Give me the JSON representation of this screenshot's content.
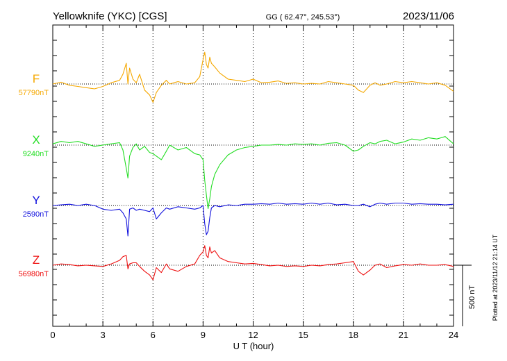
{
  "header": {
    "station": "Yellowknife (YKC)  [CGS]",
    "coords": "GG ( 62.47°, 245.53°)",
    "date": "2023/11/06"
  },
  "footer": {
    "plotted": "Plotted at 2023/11/12 21:14 UT"
  },
  "colors": {
    "F": "#f5a800",
    "X": "#22dd22",
    "Y": "#1010dd",
    "Z": "#ee1111",
    "frame": "#000000"
  },
  "chart_data": {
    "type": "line",
    "xlabel": "U T (hour)",
    "xlim": [
      0,
      24
    ],
    "x_ticks": [
      "0",
      "3",
      "6",
      "9",
      "12",
      "15",
      "18",
      "21",
      "24"
    ],
    "scale_bar": {
      "label": "500 nT",
      "value_nT": 500
    },
    "x": [
      0,
      0.5,
      1,
      1.5,
      2,
      2.5,
      3,
      3.5,
      4,
      4.2,
      4.4,
      4.5,
      4.6,
      4.8,
      5,
      5.2,
      5.5,
      5.8,
      6,
      6.2,
      6.5,
      6.8,
      7,
      7.5,
      8,
      8.5,
      8.8,
      9,
      9.1,
      9.2,
      9.3,
      9.4,
      9.5,
      9.7,
      10,
      10.5,
      11,
      11.5,
      12,
      12.5,
      13,
      13.5,
      14,
      14.5,
      15,
      15.5,
      16,
      16.5,
      17,
      17.5,
      18,
      18.3,
      18.6,
      19,
      19.3,
      19.6,
      20,
      20.5,
      21,
      21.5,
      22,
      22.5,
      23,
      23.5,
      24
    ],
    "series": [
      {
        "name": "F",
        "baseline_label": "57790nT",
        "values": [
          57790,
          57805,
          57780,
          57770,
          57760,
          57750,
          57770,
          57800,
          57820,
          57870,
          57960,
          57790,
          57920,
          57830,
          57800,
          57870,
          57740,
          57700,
          57640,
          57720,
          57780,
          57820,
          57790,
          57810,
          57790,
          57800,
          57850,
          57990,
          58050,
          57950,
          57920,
          58010,
          57960,
          57930,
          57880,
          57830,
          57820,
          57810,
          57830,
          57800,
          57805,
          57815,
          57795,
          57800,
          57790,
          57795,
          57790,
          57810,
          57800,
          57790,
          57780,
          57740,
          57720,
          57780,
          57800,
          57780,
          57790,
          57810,
          57800,
          57810,
          57800,
          57790,
          57800,
          57780,
          57730
        ]
      },
      {
        "name": "X",
        "baseline_label": "9240nT",
        "values": [
          9250,
          9270,
          9260,
          9270,
          9250,
          9230,
          9240,
          9250,
          9260,
          9200,
          9050,
          8970,
          9150,
          9220,
          9250,
          9200,
          9230,
          9180,
          9170,
          9150,
          9120,
          9190,
          9240,
          9200,
          9220,
          9170,
          9160,
          9120,
          8950,
          8830,
          8720,
          8800,
          8900,
          9000,
          9080,
          9160,
          9200,
          9220,
          9230,
          9240,
          9240,
          9245,
          9240,
          9250,
          9245,
          9250,
          9240,
          9255,
          9260,
          9240,
          9190,
          9200,
          9230,
          9260,
          9250,
          9270,
          9280,
          9250,
          9265,
          9290,
          9280,
          9300,
          9290,
          9310,
          9250
        ]
      },
      {
        "name": "Y",
        "baseline_label": "2590nT",
        "values": [
          2590,
          2595,
          2600,
          2590,
          2600,
          2590,
          2560,
          2550,
          2560,
          2530,
          2480,
          2340,
          2560,
          2570,
          2550,
          2560,
          2550,
          2540,
          2570,
          2480,
          2530,
          2570,
          2560,
          2580,
          2570,
          2560,
          2570,
          2590,
          2440,
          2350,
          2380,
          2490,
          2570,
          2590,
          2580,
          2595,
          2590,
          2600,
          2600,
          2605,
          2600,
          2610,
          2600,
          2605,
          2600,
          2610,
          2600,
          2610,
          2595,
          2600,
          2590,
          2590,
          2600,
          2580,
          2600,
          2610,
          2600,
          2610,
          2610,
          2600,
          2605,
          2600,
          2600,
          2595,
          2600
        ]
      },
      {
        "name": "Z",
        "baseline_label": "56980nT",
        "values": [
          56980,
          56990,
          56985,
          56975,
          56980,
          56975,
          56970,
          56990,
          57020,
          57050,
          57060,
          56950,
          56990,
          57000,
          57000,
          56970,
          56930,
          56900,
          56860,
          56960,
          56920,
          56990,
          56950,
          56930,
          56970,
          56990,
          57060,
          57090,
          57140,
          57060,
          57040,
          57130,
          57080,
          57100,
          57040,
          57010,
          57000,
          56990,
          56995,
          56985,
          56975,
          56980,
          56970,
          56975,
          56970,
          56980,
          56975,
          56985,
          56990,
          57000,
          57010,
          56930,
          56900,
          56940,
          56980,
          56990,
          56960,
          56975,
          56985,
          56980,
          56990,
          56980,
          56980,
          56985,
          56970
        ]
      }
    ]
  }
}
